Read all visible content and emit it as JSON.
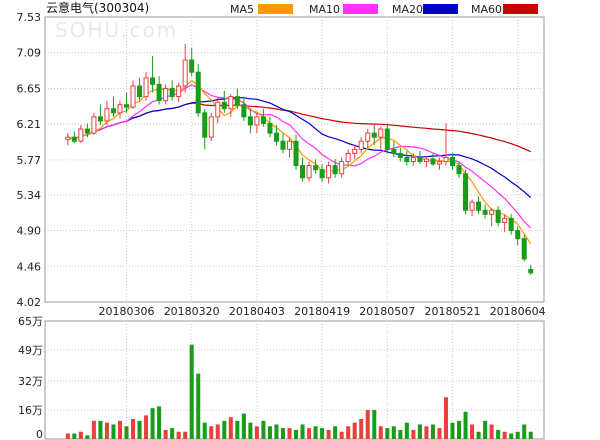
{
  "header": {
    "title": "云意电气(300304)",
    "legend": [
      {
        "label": "MA5",
        "color": "#ff9900"
      },
      {
        "label": "MA10",
        "color": "#ff33ff"
      },
      {
        "label": "MA20",
        "color": "#0000cc"
      },
      {
        "label": "MA60",
        "color": "#cc0000"
      }
    ]
  },
  "watermark": "SOHU.com",
  "colors": {
    "up": "#e8413d",
    "down": "#1a9c1a",
    "grid": "#cccccc",
    "frame": "#999999"
  },
  "chart_data": [
    {
      "type": "candlestick",
      "title": "云意电气(300304)",
      "ylim": [
        4.02,
        7.53
      ],
      "y_ticks": [
        "7.53",
        "7.09",
        "6.65",
        "6.21",
        "5.77",
        "5.34",
        "4.90",
        "4.46",
        "4.02"
      ],
      "x_ticks": [
        {
          "label": "20180306",
          "index": 9
        },
        {
          "label": "20180320",
          "index": 19
        },
        {
          "label": "20180403",
          "index": 29
        },
        {
          "label": "20180419",
          "index": 39
        },
        {
          "label": "20180507",
          "index": 49
        },
        {
          "label": "20180521",
          "index": 59
        },
        {
          "label": "20180604",
          "index": 69
        }
      ],
      "ohlc": [
        [
          6.02,
          6.1,
          5.95,
          6.05
        ],
        [
          6.05,
          6.12,
          5.98,
          6.0
        ],
        [
          6.0,
          6.2,
          5.98,
          6.15
        ],
        [
          6.15,
          6.22,
          6.05,
          6.1
        ],
        [
          6.1,
          6.35,
          6.08,
          6.3
        ],
        [
          6.3,
          6.45,
          6.2,
          6.25
        ],
        [
          6.25,
          6.5,
          6.2,
          6.4
        ],
        [
          6.4,
          6.55,
          6.3,
          6.35
        ],
        [
          6.35,
          6.5,
          6.28,
          6.45
        ],
        [
          6.45,
          6.6,
          6.35,
          6.42
        ],
        [
          6.42,
          6.75,
          6.4,
          6.68
        ],
        [
          6.68,
          6.78,
          6.5,
          6.55
        ],
        [
          6.55,
          6.85,
          6.5,
          6.78
        ],
        [
          6.78,
          7.05,
          6.6,
          6.7
        ],
        [
          6.7,
          6.8,
          6.45,
          6.5
        ],
        [
          6.5,
          6.7,
          6.45,
          6.65
        ],
        [
          6.65,
          6.75,
          6.5,
          6.55
        ],
        [
          6.55,
          6.72,
          6.48,
          6.68
        ],
        [
          6.68,
          7.2,
          6.6,
          7.0
        ],
        [
          7.0,
          7.15,
          6.8,
          6.85
        ],
        [
          6.85,
          6.95,
          6.3,
          6.35
        ],
        [
          6.35,
          6.4,
          5.9,
          6.05
        ],
        [
          6.05,
          6.35,
          6.0,
          6.3
        ],
        [
          6.3,
          6.55,
          6.22,
          6.48
        ],
        [
          6.48,
          6.62,
          6.35,
          6.4
        ],
        [
          6.4,
          6.58,
          6.3,
          6.55
        ],
        [
          6.55,
          6.65,
          6.4,
          6.45
        ],
        [
          6.45,
          6.55,
          6.25,
          6.3
        ],
        [
          6.3,
          6.4,
          6.1,
          6.2
        ],
        [
          6.2,
          6.35,
          6.1,
          6.3
        ],
        [
          6.3,
          6.4,
          6.18,
          6.22
        ],
        [
          6.22,
          6.3,
          6.05,
          6.1
        ],
        [
          6.1,
          6.2,
          5.95,
          6.0
        ],
        [
          6.0,
          6.1,
          5.85,
          5.9
        ],
        [
          5.9,
          6.05,
          5.8,
          6.0
        ],
        [
          6.0,
          6.08,
          5.65,
          5.7
        ],
        [
          5.7,
          5.8,
          5.5,
          5.55
        ],
        [
          5.55,
          5.75,
          5.5,
          5.7
        ],
        [
          5.7,
          5.78,
          5.6,
          5.65
        ],
        [
          5.65,
          5.72,
          5.5,
          5.55
        ],
        [
          5.55,
          5.75,
          5.48,
          5.7
        ],
        [
          5.7,
          5.78,
          5.55,
          5.6
        ],
        [
          5.6,
          5.8,
          5.55,
          5.75
        ],
        [
          5.75,
          5.9,
          5.7,
          5.85
        ],
        [
          5.85,
          5.95,
          5.78,
          5.9
        ],
        [
          5.9,
          6.05,
          5.85,
          6.0
        ],
        [
          6.0,
          6.15,
          5.92,
          6.1
        ],
        [
          6.1,
          6.2,
          5.95,
          6.05
        ],
        [
          6.05,
          6.18,
          5.9,
          6.15
        ],
        [
          6.15,
          6.22,
          5.85,
          5.9
        ],
        [
          5.9,
          6.0,
          5.8,
          5.85
        ],
        [
          5.85,
          5.92,
          5.75,
          5.8
        ],
        [
          5.8,
          5.88,
          5.7,
          5.75
        ],
        [
          5.75,
          5.85,
          5.7,
          5.8
        ],
        [
          5.8,
          5.88,
          5.72,
          5.75
        ],
        [
          5.75,
          5.82,
          5.68,
          5.78
        ],
        [
          5.78,
          5.85,
          5.7,
          5.72
        ],
        [
          5.72,
          5.8,
          5.65,
          5.75
        ],
        [
          5.75,
          6.22,
          5.7,
          5.8
        ],
        [
          5.8,
          5.85,
          5.65,
          5.7
        ],
        [
          5.7,
          5.75,
          5.55,
          5.6
        ],
        [
          5.6,
          5.65,
          5.1,
          5.15
        ],
        [
          5.15,
          5.28,
          5.08,
          5.25
        ],
        [
          5.25,
          5.32,
          5.1,
          5.15
        ],
        [
          5.15,
          5.22,
          5.05,
          5.1
        ],
        [
          5.1,
          5.18,
          4.95,
          5.15
        ],
        [
          5.15,
          5.2,
          4.95,
          5.0
        ],
        [
          5.0,
          5.1,
          4.88,
          5.05
        ],
        [
          5.05,
          5.1,
          4.85,
          4.9
        ],
        [
          4.9,
          4.95,
          4.72,
          4.8
        ],
        [
          4.8,
          4.85,
          4.52,
          4.55
        ],
        [
          4.42,
          4.48,
          4.35,
          4.38
        ]
      ],
      "volume_ylim": [
        0,
        65
      ],
      "volume_y_ticks": [
        "65万",
        "49万",
        "32万",
        "16万",
        "0"
      ],
      "volume": [
        3,
        3,
        4,
        2,
        10,
        10,
        9,
        8,
        10,
        7,
        11,
        10,
        13,
        17,
        18,
        5,
        6,
        4,
        4,
        52,
        36,
        9,
        7,
        8,
        10,
        12,
        10,
        14,
        9,
        7,
        10,
        7,
        8,
        6,
        6,
        5,
        8,
        6,
        7,
        6,
        5,
        7,
        4,
        7,
        9,
        11,
        16,
        16,
        7,
        6,
        7,
        5,
        9,
        5,
        8,
        7,
        8,
        6,
        23,
        9,
        10,
        15,
        8,
        4,
        10,
        8,
        5,
        4,
        3,
        4,
        8,
        4
      ]
    }
  ]
}
